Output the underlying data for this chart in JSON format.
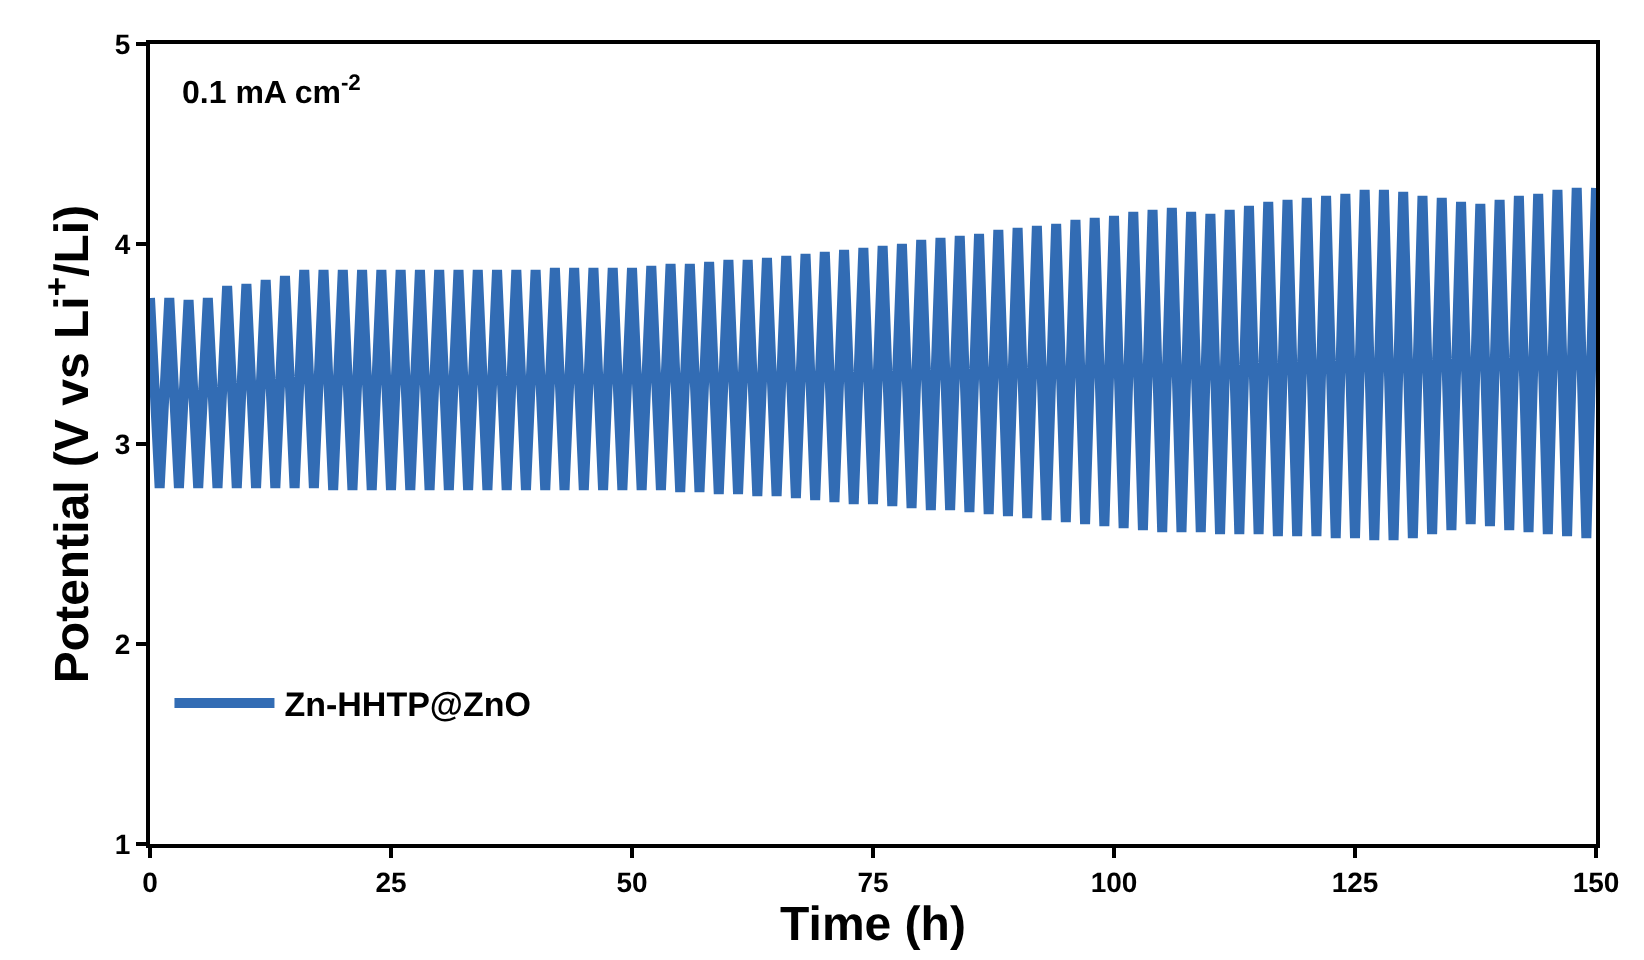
{
  "chart_data": {
    "type": "line",
    "xlabel": "Time (h)",
    "ylabel": "Potential (V vs Li$^{+}$/Li)",
    "annotations": [
      "0.1 mA cm$^{-2}$"
    ],
    "xlim": [
      0,
      150
    ],
    "xticks": [
      0,
      25,
      50,
      75,
      100,
      125,
      150
    ],
    "ylim": [
      1,
      5
    ],
    "yticks": [
      1,
      2,
      3,
      4,
      5
    ],
    "legend": "bottom left",
    "x": [
      0,
      1,
      2,
      3,
      4,
      5,
      6,
      7,
      8,
      9,
      10,
      11,
      12,
      13,
      14,
      15,
      16,
      17,
      18,
      19,
      20,
      21,
      22,
      23,
      24,
      25,
      26,
      27,
      28,
      29,
      30,
      31,
      32,
      33,
      34,
      35,
      36,
      37,
      38,
      39,
      40,
      41,
      42,
      43,
      44,
      45,
      46,
      47,
      48,
      49,
      50,
      51,
      52,
      53,
      54,
      55,
      56,
      57,
      58,
      59,
      60,
      61,
      62,
      63,
      64,
      65,
      66,
      67,
      68,
      69,
      70,
      71,
      72,
      73,
      74,
      75,
      76,
      77,
      78,
      79,
      80,
      81,
      82,
      83,
      84,
      85,
      86,
      87,
      88,
      89,
      90,
      91,
      92,
      93,
      94,
      95,
      96,
      97,
      98,
      99,
      100,
      101,
      102,
      103,
      104,
      105,
      106,
      107,
      108,
      109,
      110,
      111,
      112,
      113,
      114,
      115,
      116,
      117,
      118,
      119,
      120,
      121,
      122,
      123,
      124,
      125,
      126,
      127,
      128,
      129,
      130,
      131,
      132,
      133,
      134,
      135,
      136,
      137,
      138,
      139,
      140,
      141,
      142,
      143,
      144,
      145,
      146,
      147,
      148,
      149,
      150
    ],
    "series": [
      {
        "name": "Zn-HHTP@ZnO",
        "color": "#326cb4",
        "values": [
          3.73,
          2.78,
          3.73,
          2.78,
          3.72,
          2.78,
          3.73,
          2.78,
          3.79,
          2.78,
          3.8,
          2.78,
          3.82,
          2.78,
          3.84,
          2.78,
          3.87,
          2.78,
          3.87,
          2.77,
          3.87,
          2.77,
          3.87,
          2.77,
          3.87,
          2.77,
          3.87,
          2.77,
          3.87,
          2.77,
          3.87,
          2.77,
          3.87,
          2.77,
          3.87,
          2.77,
          3.87,
          2.77,
          3.87,
          2.77,
          3.87,
          2.77,
          3.88,
          2.77,
          3.88,
          2.77,
          3.88,
          2.77,
          3.88,
          2.77,
          3.88,
          2.77,
          3.89,
          2.77,
          3.9,
          2.76,
          3.9,
          2.76,
          3.91,
          2.75,
          3.92,
          2.75,
          3.92,
          2.74,
          3.93,
          2.74,
          3.94,
          2.73,
          3.95,
          2.72,
          3.96,
          2.71,
          3.97,
          2.7,
          3.98,
          2.7,
          3.99,
          2.69,
          4.0,
          2.68,
          4.02,
          2.67,
          4.03,
          2.67,
          4.04,
          2.66,
          4.05,
          2.65,
          4.07,
          2.64,
          4.08,
          2.63,
          4.09,
          2.62,
          4.1,
          2.61,
          4.12,
          2.6,
          4.13,
          2.59,
          4.14,
          2.58,
          4.16,
          2.57,
          4.17,
          2.56,
          4.18,
          2.56,
          4.16,
          2.56,
          4.15,
          2.55,
          4.17,
          2.55,
          4.19,
          2.55,
          4.21,
          2.54,
          4.22,
          2.54,
          4.23,
          2.54,
          4.24,
          2.53,
          4.25,
          2.53,
          4.27,
          2.52,
          4.27,
          2.52,
          4.26,
          2.53,
          4.24,
          2.55,
          4.23,
          2.57,
          4.21,
          2.6,
          4.2,
          2.59,
          4.22,
          2.57,
          4.24,
          2.56,
          4.25,
          2.55,
          4.27,
          2.54,
          4.28,
          2.53,
          4.28
        ]
      }
    ]
  }
}
